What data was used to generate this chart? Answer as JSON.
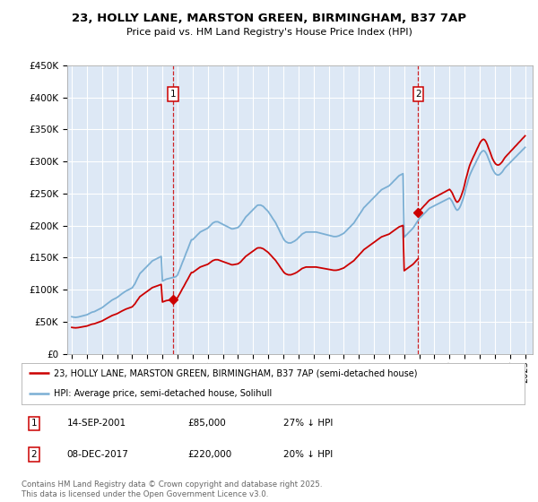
{
  "title": "23, HOLLY LANE, MARSTON GREEN, BIRMINGHAM, B37 7AP",
  "subtitle": "Price paid vs. HM Land Registry's House Price Index (HPI)",
  "ylim": [
    0,
    450000
  ],
  "xlim_start": 1994.7,
  "xlim_end": 2025.5,
  "annotation1": {
    "label": "1",
    "x": 2001.71,
    "price": 85000,
    "text_date": "14-SEP-2001",
    "text_price": "£85,000",
    "text_pct": "27% ↓ HPI"
  },
  "annotation2": {
    "label": "2",
    "x": 2017.93,
    "price": 220000,
    "text_date": "08-DEC-2017",
    "text_price": "£220,000",
    "text_pct": "20% ↓ HPI"
  },
  "legend_line1": "23, HOLLY LANE, MARSTON GREEN, BIRMINGHAM, B37 7AP (semi-detached house)",
  "legend_line2": "HPI: Average price, semi-detached house, Solihull",
  "footer": "Contains HM Land Registry data © Crown copyright and database right 2025.\nThis data is licensed under the Open Government Licence v3.0.",
  "red_color": "#cc0000",
  "blue_color": "#7bafd4",
  "bg_color": "#dde8f5",
  "grid_color": "#ffffff",
  "sale1_year": 2001.71,
  "sale1_price": 85000,
  "sale2_year": 2017.93,
  "sale2_price": 220000,
  "hpi_data": {
    "years": [
      1995.0,
      1995.08,
      1995.17,
      1995.25,
      1995.33,
      1995.42,
      1995.5,
      1995.58,
      1995.67,
      1995.75,
      1995.83,
      1995.92,
      1996.0,
      1996.08,
      1996.17,
      1996.25,
      1996.33,
      1996.42,
      1996.5,
      1996.58,
      1996.67,
      1996.75,
      1996.83,
      1996.92,
      1997.0,
      1997.08,
      1997.17,
      1997.25,
      1997.33,
      1997.42,
      1997.5,
      1997.58,
      1997.67,
      1997.75,
      1997.83,
      1997.92,
      1998.0,
      1998.08,
      1998.17,
      1998.25,
      1998.33,
      1998.42,
      1998.5,
      1998.58,
      1998.67,
      1998.75,
      1998.83,
      1998.92,
      1999.0,
      1999.08,
      1999.17,
      1999.25,
      1999.33,
      1999.42,
      1999.5,
      1999.58,
      1999.67,
      1999.75,
      1999.83,
      1999.92,
      2000.0,
      2000.08,
      2000.17,
      2000.25,
      2000.33,
      2000.42,
      2000.5,
      2000.58,
      2000.67,
      2000.75,
      2000.83,
      2000.92,
      2001.0,
      2001.08,
      2001.17,
      2001.25,
      2001.33,
      2001.42,
      2001.5,
      2001.58,
      2001.67,
      2001.75,
      2001.83,
      2001.92,
      2002.0,
      2002.08,
      2002.17,
      2002.25,
      2002.33,
      2002.42,
      2002.5,
      2002.58,
      2002.67,
      2002.75,
      2002.83,
      2002.92,
      2003.0,
      2003.08,
      2003.17,
      2003.25,
      2003.33,
      2003.42,
      2003.5,
      2003.58,
      2003.67,
      2003.75,
      2003.83,
      2003.92,
      2004.0,
      2004.08,
      2004.17,
      2004.25,
      2004.33,
      2004.42,
      2004.5,
      2004.58,
      2004.67,
      2004.75,
      2004.83,
      2004.92,
      2005.0,
      2005.08,
      2005.17,
      2005.25,
      2005.33,
      2005.42,
      2005.5,
      2005.58,
      2005.67,
      2005.75,
      2005.83,
      2005.92,
      2006.0,
      2006.08,
      2006.17,
      2006.25,
      2006.33,
      2006.42,
      2006.5,
      2006.58,
      2006.67,
      2006.75,
      2006.83,
      2006.92,
      2007.0,
      2007.08,
      2007.17,
      2007.25,
      2007.33,
      2007.42,
      2007.5,
      2007.58,
      2007.67,
      2007.75,
      2007.83,
      2007.92,
      2008.0,
      2008.08,
      2008.17,
      2008.25,
      2008.33,
      2008.42,
      2008.5,
      2008.58,
      2008.67,
      2008.75,
      2008.83,
      2008.92,
      2009.0,
      2009.08,
      2009.17,
      2009.25,
      2009.33,
      2009.42,
      2009.5,
      2009.58,
      2009.67,
      2009.75,
      2009.83,
      2009.92,
      2010.0,
      2010.08,
      2010.17,
      2010.25,
      2010.33,
      2010.42,
      2010.5,
      2010.58,
      2010.67,
      2010.75,
      2010.83,
      2010.92,
      2011.0,
      2011.08,
      2011.17,
      2011.25,
      2011.33,
      2011.42,
      2011.5,
      2011.58,
      2011.67,
      2011.75,
      2011.83,
      2011.92,
      2012.0,
      2012.08,
      2012.17,
      2012.25,
      2012.33,
      2012.42,
      2012.5,
      2012.58,
      2012.67,
      2012.75,
      2012.83,
      2012.92,
      2013.0,
      2013.08,
      2013.17,
      2013.25,
      2013.33,
      2013.42,
      2013.5,
      2013.58,
      2013.67,
      2013.75,
      2013.83,
      2013.92,
      2014.0,
      2014.08,
      2014.17,
      2014.25,
      2014.33,
      2014.42,
      2014.5,
      2014.58,
      2014.67,
      2014.75,
      2014.83,
      2014.92,
      2015.0,
      2015.08,
      2015.17,
      2015.25,
      2015.33,
      2015.42,
      2015.5,
      2015.58,
      2015.67,
      2015.75,
      2015.83,
      2015.92,
      2016.0,
      2016.08,
      2016.17,
      2016.25,
      2016.33,
      2016.42,
      2016.5,
      2016.58,
      2016.67,
      2016.75,
      2016.83,
      2016.92,
      2017.0,
      2017.08,
      2017.17,
      2017.25,
      2017.33,
      2017.42,
      2017.5,
      2017.58,
      2017.67,
      2017.75,
      2017.83,
      2017.92,
      2018.0,
      2018.08,
      2018.17,
      2018.25,
      2018.33,
      2018.42,
      2018.5,
      2018.58,
      2018.67,
      2018.75,
      2018.83,
      2018.92,
      2019.0,
      2019.08,
      2019.17,
      2019.25,
      2019.33,
      2019.42,
      2019.5,
      2019.58,
      2019.67,
      2019.75,
      2019.83,
      2019.92,
      2020.0,
      2020.08,
      2020.17,
      2020.25,
      2020.33,
      2020.42,
      2020.5,
      2020.58,
      2020.67,
      2020.75,
      2020.83,
      2020.92,
      2021.0,
      2021.08,
      2021.17,
      2021.25,
      2021.33,
      2021.42,
      2021.5,
      2021.58,
      2021.67,
      2021.75,
      2021.83,
      2021.92,
      2022.0,
      2022.08,
      2022.17,
      2022.25,
      2022.33,
      2022.42,
      2022.5,
      2022.58,
      2022.67,
      2022.75,
      2022.83,
      2022.92,
      2023.0,
      2023.08,
      2023.17,
      2023.25,
      2023.33,
      2023.42,
      2023.5,
      2023.58,
      2023.67,
      2023.75,
      2023.83,
      2023.92,
      2024.0,
      2024.08,
      2024.17,
      2024.25,
      2024.33,
      2024.42,
      2024.5,
      2024.58,
      2024.67,
      2024.75,
      2024.83,
      2024.92,
      2025.0
    ],
    "values": [
      58000,
      57500,
      57200,
      57000,
      57200,
      57500,
      58000,
      58500,
      59000,
      59500,
      60000,
      60500,
      61000,
      62000,
      63000,
      64000,
      65000,
      65500,
      66000,
      67000,
      68000,
      69000,
      70000,
      71000,
      72000,
      73500,
      75000,
      76500,
      78000,
      79500,
      81000,
      82500,
      84000,
      85000,
      86000,
      87000,
      88000,
      89500,
      91000,
      92500,
      94000,
      95500,
      97000,
      98000,
      99000,
      100000,
      101000,
      102000,
      103000,
      106000,
      109000,
      113000,
      117000,
      121000,
      125000,
      127000,
      129000,
      131000,
      133000,
      135000,
      137000,
      139000,
      141000,
      143000,
      145000,
      146000,
      147000,
      148000,
      149000,
      150000,
      151000,
      152000,
      113500,
      114500,
      115500,
      116500,
      117000,
      117500,
      118000,
      118500,
      119000,
      119500,
      120000,
      121000,
      123000,
      128000,
      133000,
      138000,
      143000,
      148000,
      153000,
      158000,
      163000,
      168000,
      173000,
      178000,
      178000,
      180000,
      182000,
      184000,
      186000,
      188000,
      190000,
      191000,
      192000,
      193000,
      194000,
      195000,
      196000,
      198000,
      200000,
      202000,
      204000,
      205000,
      206000,
      206000,
      206000,
      205000,
      204000,
      203000,
      202000,
      201000,
      200000,
      199000,
      198000,
      197000,
      196000,
      195000,
      195000,
      195500,
      196000,
      196500,
      197000,
      199000,
      201000,
      204000,
      207000,
      210000,
      213000,
      215000,
      217000,
      219000,
      221000,
      223000,
      225000,
      227000,
      229000,
      231000,
      232000,
      232000,
      232000,
      231000,
      230000,
      228000,
      226000,
      224000,
      222000,
      219000,
      216000,
      213000,
      210000,
      207000,
      204000,
      200000,
      196000,
      192000,
      188000,
      184000,
      180000,
      177000,
      175000,
      174000,
      173000,
      173000,
      173000,
      174000,
      175000,
      176000,
      177500,
      179000,
      181000,
      183000,
      185000,
      187000,
      188000,
      189000,
      190000,
      190000,
      190000,
      190000,
      190000,
      190000,
      190000,
      190000,
      190000,
      189500,
      189000,
      188500,
      188000,
      187500,
      187000,
      186500,
      186000,
      185500,
      185000,
      184500,
      184000,
      183500,
      183000,
      183000,
      183000,
      183500,
      184000,
      185000,
      186000,
      187000,
      188000,
      190000,
      192000,
      194000,
      196000,
      198000,
      200000,
      202000,
      204000,
      207000,
      210000,
      213000,
      216000,
      219000,
      222000,
      225000,
      228000,
      230000,
      232000,
      234000,
      236000,
      238000,
      240000,
      242000,
      244000,
      246000,
      248000,
      250000,
      252000,
      254000,
      256000,
      257000,
      258000,
      259000,
      260000,
      261000,
      262000,
      264000,
      266000,
      268000,
      270000,
      272000,
      274000,
      276000,
      278000,
      279000,
      280000,
      281000,
      182000,
      184000,
      186000,
      188000,
      190000,
      192000,
      194000,
      196000,
      199000,
      202000,
      205000,
      208000,
      211000,
      213000,
      215000,
      217000,
      219000,
      221000,
      223000,
      225000,
      227000,
      228000,
      229000,
      230000,
      231000,
      232000,
      233000,
      234000,
      235000,
      236000,
      237000,
      238000,
      239000,
      240000,
      241000,
      242000,
      243000,
      241000,
      238000,
      234000,
      230000,
      226000,
      224000,
      225000,
      228000,
      232000,
      237000,
      243000,
      250000,
      258000,
      265000,
      272000,
      278000,
      283000,
      287000,
      291000,
      295000,
      299000,
      303000,
      307000,
      311000,
      314000,
      316000,
      317000,
      316000,
      313000,
      309000,
      304000,
      299000,
      294000,
      289000,
      285000,
      282000,
      280000,
      279000,
      279000,
      280000,
      282000,
      284000,
      287000,
      290000,
      292000,
      294000,
      296000,
      298000,
      300000,
      302000,
      304000,
      306000,
      308000,
      310000,
      312000,
      314000,
      316000,
      318000,
      320000,
      322000
    ]
  }
}
